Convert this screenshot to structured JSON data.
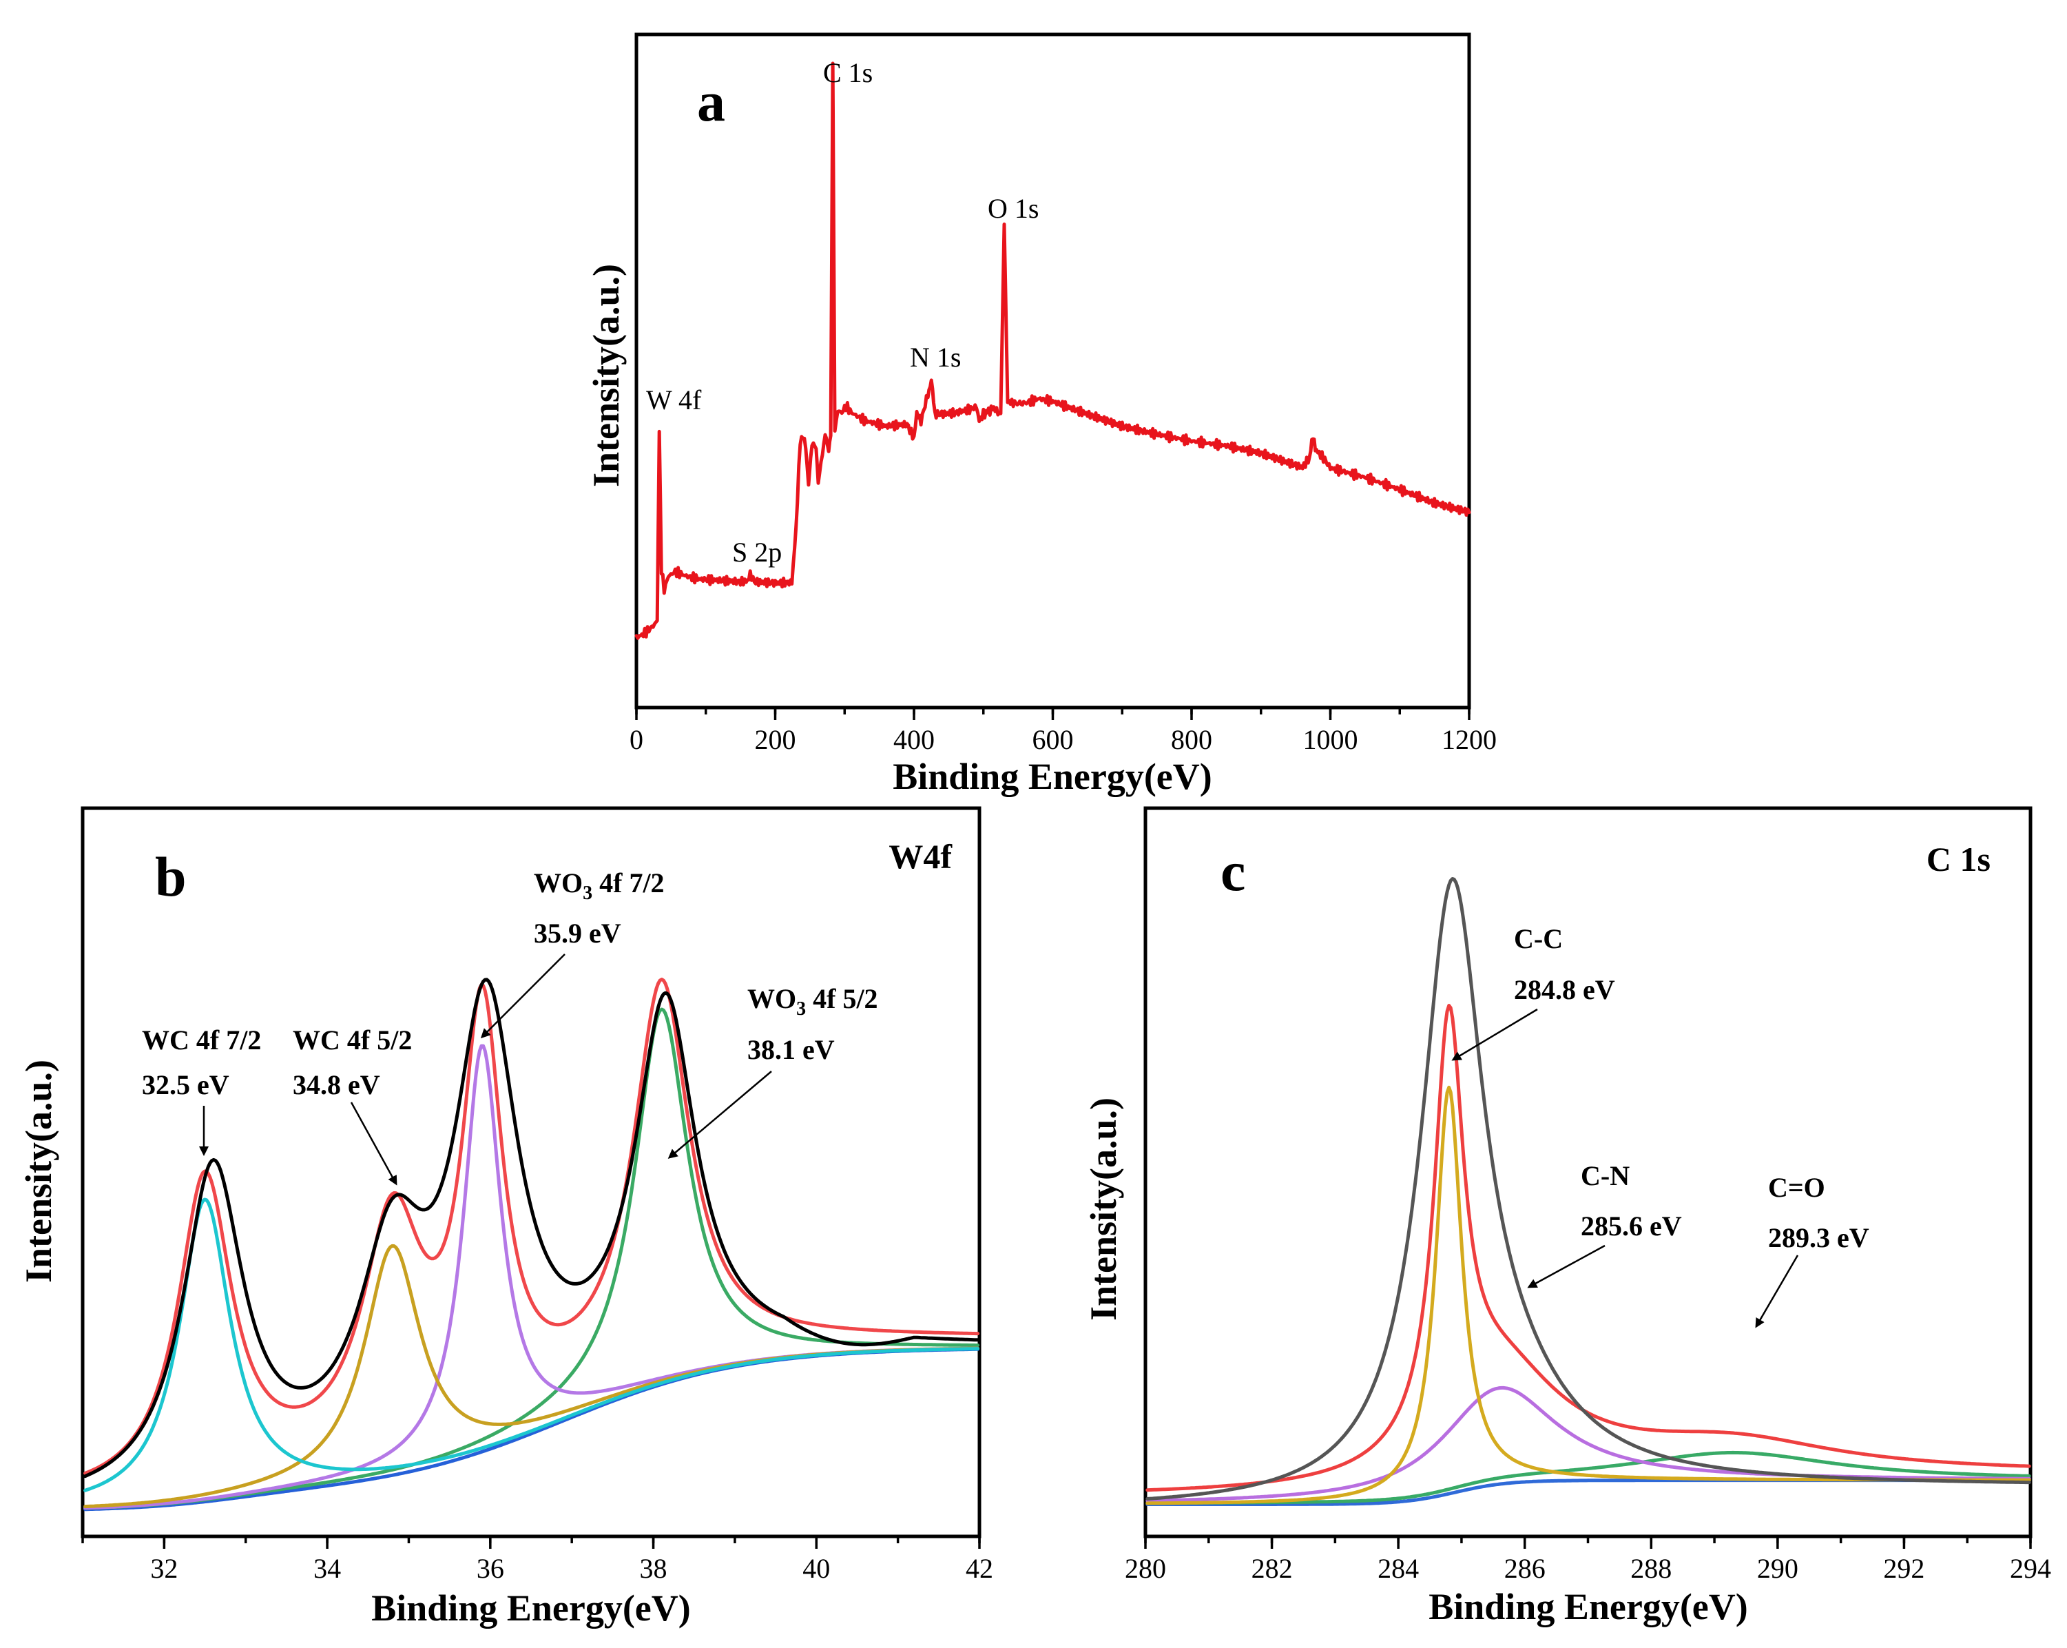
{
  "chart_data": [
    {
      "id": "a",
      "type": "line",
      "panel_label": "a",
      "title": "",
      "xlabel": "Binding Energy(eV)",
      "ylabel": "Intensity(a.u.)",
      "xlim": [
        0,
        1200
      ],
      "ylim": [
        0,
        100
      ],
      "xticks": [
        0,
        200,
        400,
        600,
        800,
        1000,
        1200
      ],
      "tick_labels": [
        "0",
        "200",
        "400",
        "600",
        "800",
        "1000",
        "1200"
      ],
      "series": [
        {
          "name": "Survey spectrum",
          "color": "#e8141c",
          "x": [
            0,
            8,
            16,
            24,
            30,
            33,
            36,
            40,
            46,
            56,
            70,
            90,
            120,
            150,
            160,
            164,
            170,
            200,
            224,
            230,
            236,
            242,
            246,
            248,
            251,
            255,
            259,
            262,
            266,
            272,
            277,
            280,
            283,
            286,
            290,
            296,
            302,
            310,
            330,
            360,
            390,
            400,
            404,
            410,
            420,
            425,
            430,
            440,
            460,
            480,
            490,
            494,
            500,
            515,
            525,
            530,
            535,
            545,
            560,
            580,
            600,
            620,
            650,
            700,
            750,
            800,
            850,
            900,
            950,
            960,
            970,
            975,
            980,
            990,
            1000,
            1050,
            1100,
            1150,
            1200
          ],
          "y": [
            10.4,
            10.8,
            11.4,
            12.1,
            12.9,
            41,
            20.6,
            17.5,
            19.5,
            20.2,
            19.6,
            19.1,
            18.9,
            18.7,
            18.8,
            19.8,
            18.7,
            18.5,
            18.6,
            26.5,
            39.7,
            40.2,
            36.2,
            33.0,
            37.4,
            39.6,
            38.1,
            33.6,
            36.3,
            40.5,
            38.5,
            40.4,
            95.7,
            41.1,
            44.1,
            43.8,
            44.8,
            43.8,
            42.6,
            41.8,
            42.1,
            40.0,
            43.8,
            42.5,
            46.6,
            48.6,
            43.6,
            43.6,
            43.8,
            44.3,
            44.7,
            42.6,
            43.6,
            44.5,
            43.5,
            71.8,
            45.5,
            45.2,
            45.2,
            45.9,
            45.5,
            44.7,
            43.6,
            41.8,
            40.6,
            39.6,
            38.9,
            37.8,
            36.0,
            35.7,
            37.1,
            40.2,
            38.2,
            37.1,
            35.6,
            34.2,
            32.4,
            30.4,
            29.0
          ]
        }
      ],
      "annotations": [
        "W 4f",
        "S 2p",
        "C 1s",
        "N 1s",
        "O 1s"
      ]
    },
    {
      "id": "b",
      "type": "line",
      "panel_label": "b",
      "title": "W4f",
      "xlabel": "Binding Energy(eV)",
      "ylabel": "Intensity(a.u.)",
      "xlim": [
        31,
        42
      ],
      "ylim": [
        0,
        100
      ],
      "xticks": [
        32,
        34,
        36,
        38,
        40,
        42
      ],
      "tick_labels": [
        "32",
        "34",
        "36",
        "38",
        "40",
        "42"
      ],
      "series": [
        {
          "name": "Raw data",
          "color": "#000000",
          "model": "raw",
          "peaks": [
            [
              32.6,
              44,
              0.45
            ],
            [
              34.8,
              26.8,
              0.5
            ],
            [
              35.95,
              57.6,
              0.48
            ],
            [
              38.15,
              50.1,
              0.45
            ]
          ]
        },
        {
          "name": "Envelope",
          "color": "#f0474a",
          "model": "sum",
          "peaks": [
            [
              32.5,
              42.3,
              0.4
            ],
            [
              34.8,
              31.5,
              0.45
            ],
            [
              35.9,
              56,
              0.3
            ],
            [
              38.1,
              52.6,
              0.42
            ]
          ]
        },
        {
          "name": "WC 4f 7/2",
          "color": "#1cc6cf",
          "model": "single",
          "peaks": [
            [
              32.5,
              41.5,
              0.38
            ]
          ]
        },
        {
          "name": "WC 4f 5/2",
          "color": "#c8a020",
          "model": "single",
          "peaks": [
            [
              34.8,
              31.5,
              0.42
            ]
          ]
        },
        {
          "name": "WO3 4f 7/2",
          "color": "#b478e6",
          "model": "single",
          "peaks": [
            [
              35.9,
              55.8,
              0.28
            ]
          ]
        },
        {
          "name": "WO3 4f 5/2",
          "color": "#3aaa64",
          "model": "single",
          "peaks": [
            [
              38.1,
              51.5,
              0.4
            ]
          ]
        },
        {
          "name": "Background",
          "color": "#2560d8",
          "model": "background"
        }
      ],
      "annotations": {
        "wc72": {
          "name": "WC 4f 7/2",
          "value": "32.5 eV"
        },
        "wc52": {
          "name": "WC 4f 5/2",
          "value": "34.8 eV"
        },
        "wo72": {
          "name_prefix": "WO",
          "name_sub": "3",
          "name_suffix": " 4f 7/2",
          "value": "35.9 eV"
        },
        "wo52": {
          "name_prefix": "WO",
          "name_sub": "3",
          "name_suffix": " 4f 5/2",
          "value": "38.1 eV"
        }
      }
    },
    {
      "id": "c",
      "type": "line",
      "panel_label": "c",
      "title": "C 1s",
      "xlabel": "Binding Energy(eV)",
      "ylabel": "Intensity(a.u.)",
      "xlim": [
        280,
        294
      ],
      "ylim": [
        0,
        100
      ],
      "xticks": [
        280,
        282,
        284,
        286,
        288,
        290,
        292,
        294
      ],
      "tick_labels": [
        "280",
        "282",
        "284",
        "286",
        "288",
        "290",
        "292",
        "294"
      ],
      "series": [
        {
          "name": "Raw data",
          "color": "#555555",
          "model": "raw",
          "peaks": [
            [
              284.85,
              80.2,
              0.6
            ],
            [
              285.8,
              8,
              1.2
            ]
          ]
        },
        {
          "name": "Envelope",
          "color": "#ee3f3f",
          "model": "sum",
          "peaks": [
            [
              284.8,
              56.1,
              0.28
            ],
            [
              285.6,
              13.4,
              1.2
            ],
            [
              289.3,
              4.0,
              2.0
            ]
          ]
        },
        {
          "name": "C-C",
          "color": "#d4aa1e",
          "model": "single",
          "peaks": [
            [
              284.8,
              55.8,
              0.25
            ]
          ]
        },
        {
          "name": "C-N",
          "color": "#b86ee0",
          "model": "single",
          "peaks": [
            [
              285.6,
              13.2,
              1.1
            ]
          ]
        },
        {
          "name": "C=O",
          "color": "#38aa66",
          "model": "single",
          "peaks": [
            [
              289.3,
              3.8,
              2.0
            ]
          ]
        },
        {
          "name": "Background",
          "color": "#2f6ad8",
          "model": "background"
        }
      ],
      "annotations": {
        "cc": {
          "name": "C-C",
          "value": "284.8 eV"
        },
        "cn": {
          "name": "C-N",
          "value": "285.6 eV"
        },
        "co": {
          "name": "C=O",
          "value": "289.3 eV"
        }
      }
    }
  ]
}
